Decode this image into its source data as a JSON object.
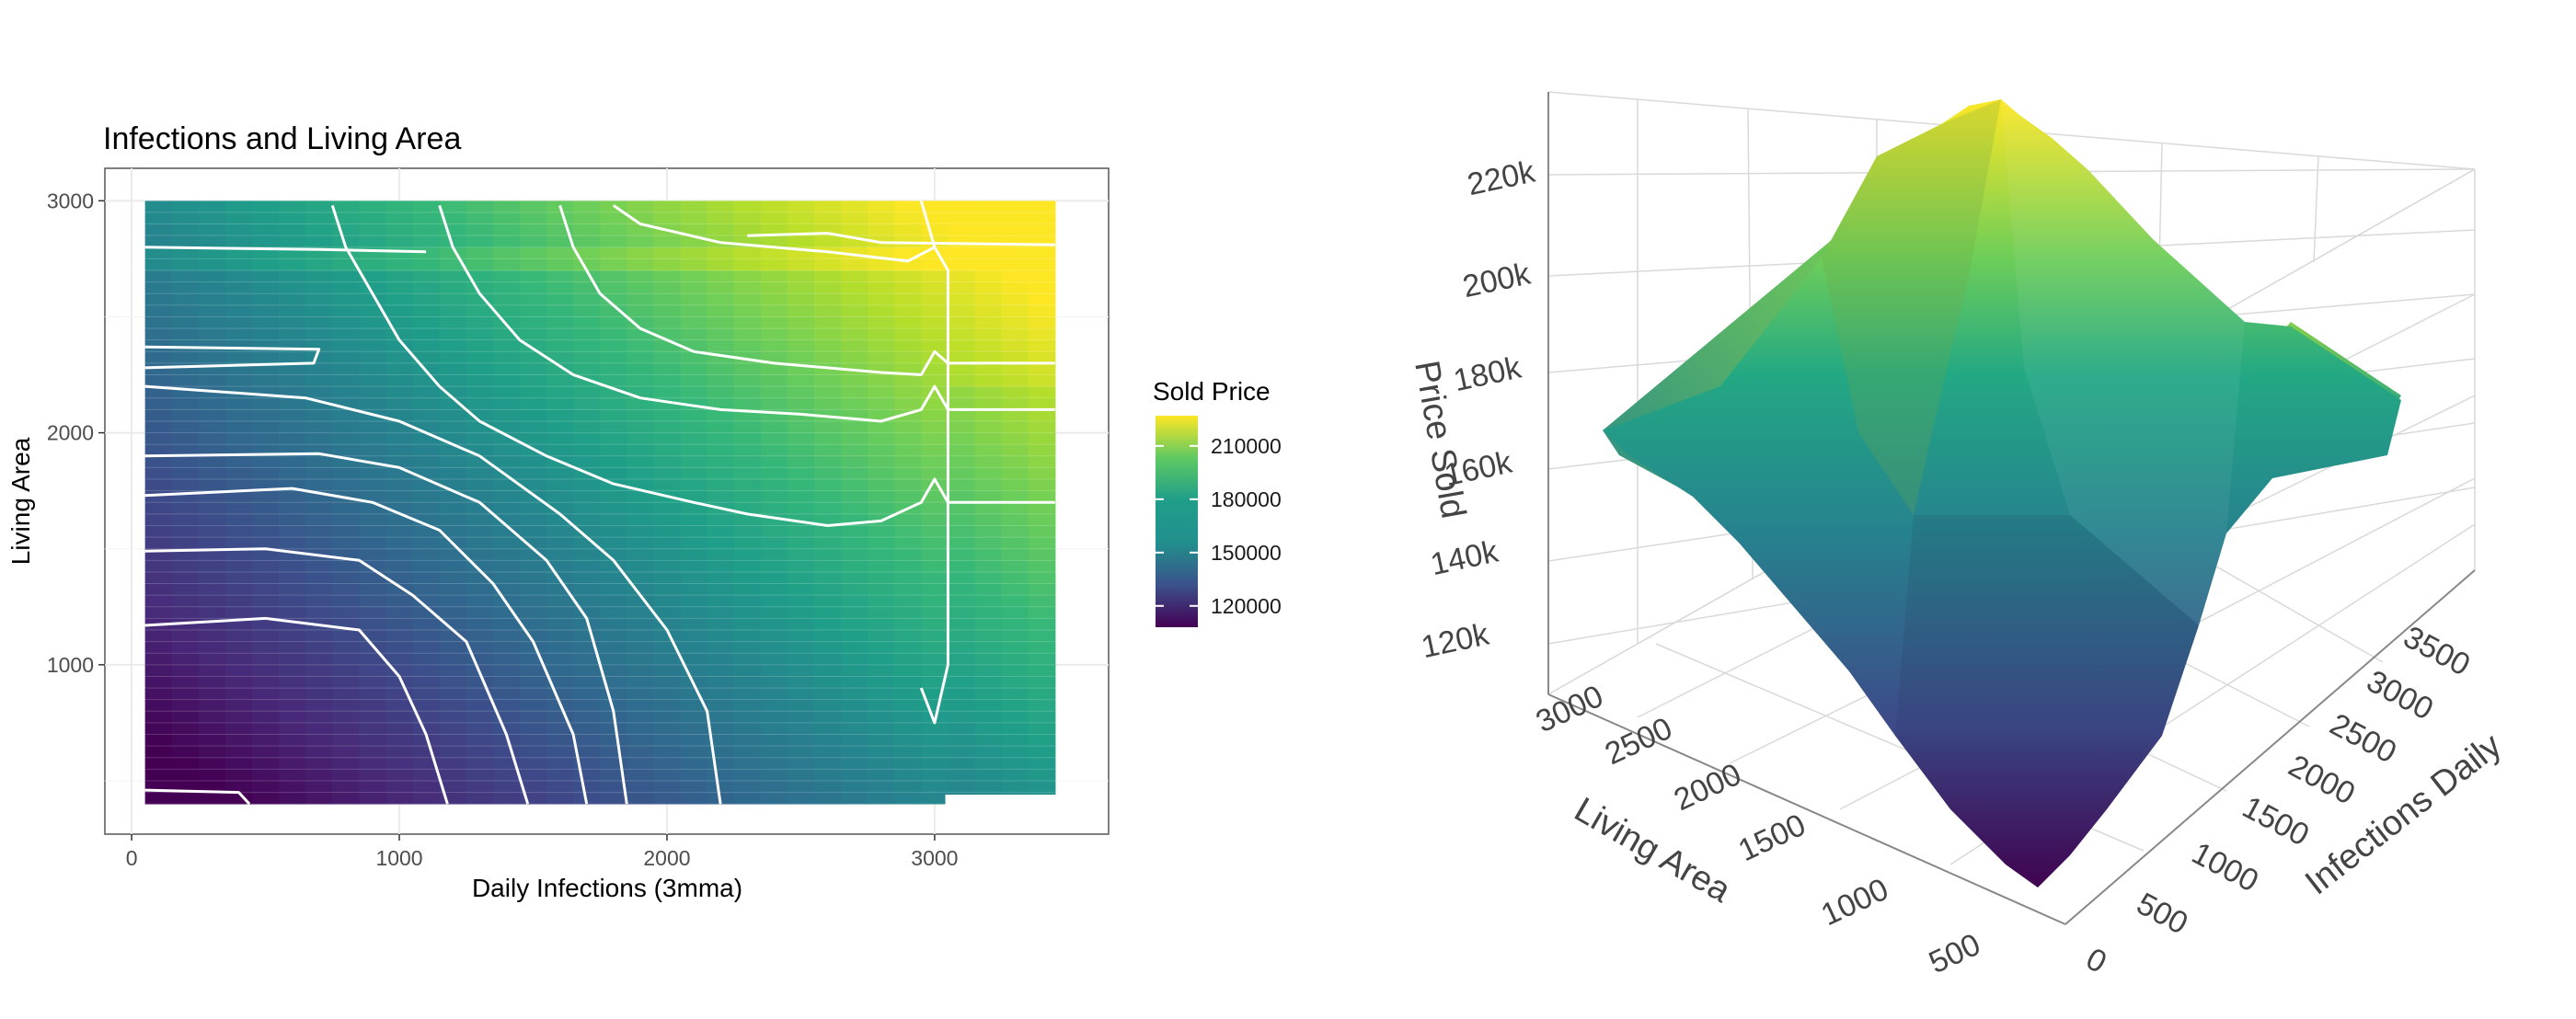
{
  "chart_data": [
    {
      "type": "heatmap",
      "title": "Infections and Living Area",
      "xlabel": "Daily Infections (3mma)",
      "ylabel": "Living Area",
      "xlim": [
        -100,
        3650
      ],
      "ylim": [
        270,
        3140
      ],
      "x_ticks": [
        0,
        1000,
        2000,
        3000
      ],
      "y_ticks": [
        1000,
        2000,
        3000
      ],
      "x_extent": [
        50,
        3450
      ],
      "y_extent": [
        400,
        3000
      ],
      "grid": true,
      "legend": {
        "title": "Sold Price",
        "position": "right",
        "ticks": [
          210000,
          180000,
          150000,
          120000
        ],
        "range": [
          108000,
          227000
        ]
      },
      "colors": [
        "#440154",
        "#482878",
        "#3e4989",
        "#31688e",
        "#26828e",
        "#1f9e89",
        "#35b779",
        "#6ece58",
        "#b5de2b",
        "#fde725"
      ],
      "contour_lines": [
        {
          "level": "~120k",
          "points": [
            [
              50,
              460
            ],
            [
              400,
              450
            ],
            [
              440,
              400
            ]
          ]
        },
        {
          "level": "~130k",
          "points": [
            [
              50,
              1170
            ],
            [
              500,
              1200
            ],
            [
              850,
              1150
            ],
            [
              1000,
              950
            ],
            [
              1100,
              700
            ],
            [
              1180,
              400
            ]
          ]
        },
        {
          "level": "~140k",
          "points": [
            [
              50,
              1490
            ],
            [
              500,
              1500
            ],
            [
              850,
              1450
            ],
            [
              1050,
              1300
            ],
            [
              1250,
              1100
            ],
            [
              1400,
              700
            ],
            [
              1480,
              400
            ]
          ]
        },
        {
          "level": "~150k",
          "points": [
            [
              50,
              1730
            ],
            [
              600,
              1760
            ],
            [
              900,
              1700
            ],
            [
              1150,
              1580
            ],
            [
              1350,
              1350
            ],
            [
              1500,
              1100
            ],
            [
              1650,
              700
            ],
            [
              1700,
              400
            ]
          ]
        },
        {
          "level": "~160k",
          "points": [
            [
              50,
              1900
            ],
            [
              700,
              1910
            ],
            [
              1000,
              1850
            ],
            [
              1300,
              1700
            ],
            [
              1550,
              1450
            ],
            [
              1700,
              1200
            ],
            [
              1800,
              800
            ],
            [
              1850,
              400
            ]
          ]
        },
        {
          "level": "~170k",
          "points": [
            [
              50,
              2200
            ],
            [
              650,
              2150
            ],
            [
              1000,
              2050
            ],
            [
              1300,
              1900
            ],
            [
              1600,
              1650
            ],
            [
              1800,
              1450
            ],
            [
              2000,
              1150
            ],
            [
              2150,
              800
            ],
            [
              2200,
              400
            ]
          ]
        },
        {
          "level": "~180k",
          "points": [
            [
              50,
              2370
            ],
            [
              700,
              2360
            ],
            [
              680,
              2300
            ],
            [
              50,
              2280
            ]
          ]
        },
        {
          "level": "~190k",
          "points": [
            [
              750,
              2980
            ],
            [
              800,
              2800
            ],
            [
              900,
              2600
            ],
            [
              1000,
              2400
            ],
            [
              1150,
              2200
            ],
            [
              1300,
              2050
            ],
            [
              1550,
              1900
            ],
            [
              1800,
              1780
            ],
            [
              2100,
              1700
            ],
            [
              2300,
              1650
            ],
            [
              2600,
              1600
            ],
            [
              2800,
              1620
            ],
            [
              2950,
              1700
            ],
            [
              3000,
              1800
            ],
            [
              3050,
              1700
            ],
            [
              3450,
              1700
            ]
          ]
        },
        {
          "level": "~195k",
          "points": [
            [
              1150,
              2980
            ],
            [
              1200,
              2800
            ],
            [
              1300,
              2600
            ],
            [
              1450,
              2400
            ],
            [
              1650,
              2250
            ],
            [
              1900,
              2150
            ],
            [
              2200,
              2100
            ],
            [
              2500,
              2080
            ],
            [
              2800,
              2050
            ],
            [
              2950,
              2100
            ],
            [
              3000,
              2200
            ],
            [
              3050,
              2100
            ],
            [
              3450,
              2100
            ]
          ]
        },
        {
          "level": "~200k",
          "points": [
            [
              1600,
              2980
            ],
            [
              1650,
              2800
            ],
            [
              1750,
              2600
            ],
            [
              1900,
              2450
            ],
            [
              2100,
              2350
            ],
            [
              2400,
              2300
            ],
            [
              2800,
              2260
            ],
            [
              2950,
              2250
            ],
            [
              3000,
              2350
            ],
            [
              3050,
              2300
            ],
            [
              3450,
              2300
            ]
          ]
        },
        {
          "level": "~205k",
          "points": [
            [
              50,
              2800
            ],
            [
              700,
              2790
            ],
            [
              1100,
              2780
            ]
          ]
        },
        {
          "level": "~210k",
          "points": [
            [
              1800,
              2980
            ],
            [
              1900,
              2900
            ],
            [
              2200,
              2820
            ],
            [
              2600,
              2780
            ],
            [
              2900,
              2740
            ],
            [
              3000,
              2800
            ]
          ]
        },
        {
          "level": "~205k",
          "points": [
            [
              2950,
              3000
            ],
            [
              3000,
              2800
            ],
            [
              3050,
              2700
            ],
            [
              3050,
              1000
            ],
            [
              3000,
              750
            ],
            [
              2950,
              900
            ]
          ]
        },
        {
          "level": "~215k",
          "points": [
            [
              2300,
              2850
            ],
            [
              2600,
              2860
            ],
            [
              2800,
              2820
            ],
            [
              3450,
              2810
            ]
          ]
        }
      ]
    },
    {
      "type": "surface",
      "zlabel": "Price Sold",
      "xlabel": "Living Area",
      "ylabel": "Infections Daily",
      "z_ticks": [
        "120k",
        "140k",
        "160k",
        "180k",
        "200k",
        "220k"
      ],
      "x_ticks": [
        "500",
        "1000",
        "1500",
        "2000",
        "2500",
        "3000"
      ],
      "y_ticks": [
        "0",
        "500",
        "1000",
        "1500",
        "2000",
        "2500",
        "3000",
        "3500"
      ],
      "zlim": [
        110000,
        230000
      ],
      "colors": [
        "#440154",
        "#3e4989",
        "#26828e",
        "#35b779",
        "#b5de2b",
        "#fde725"
      ]
    }
  ]
}
